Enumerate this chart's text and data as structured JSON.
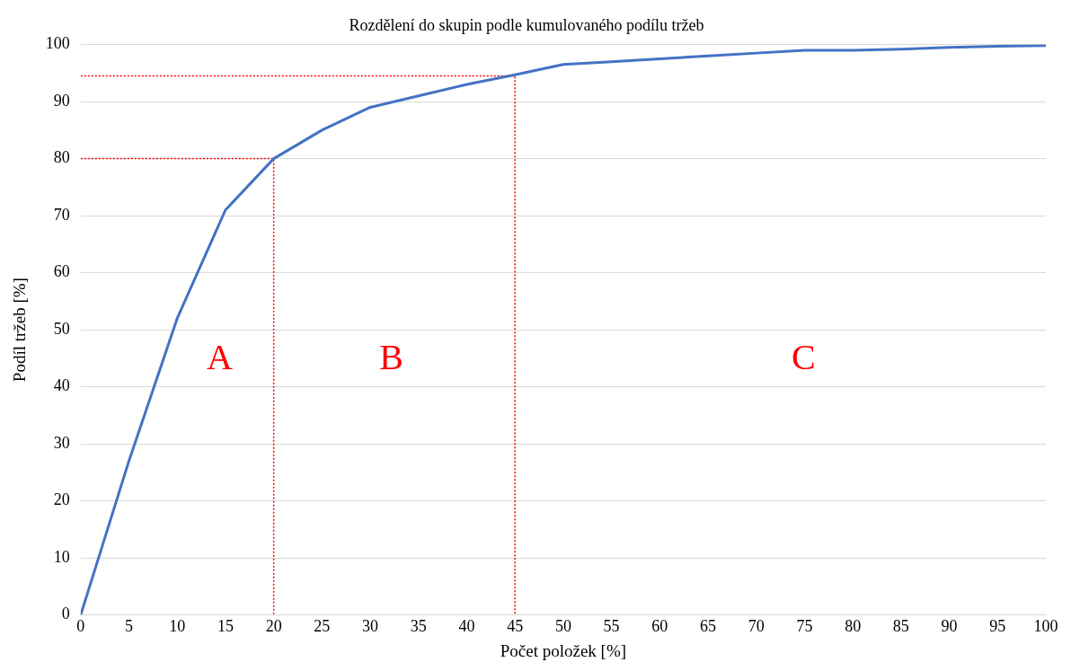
{
  "chart_data": {
    "type": "line",
    "title": "Rozdělení do skupin podle kumulovaného podílu tržeb",
    "xlabel": "Počet položek [%]",
    "ylabel": "Podíl tržeb [%]",
    "x": [
      0,
      5,
      10,
      15,
      20,
      25,
      30,
      35,
      40,
      45,
      50,
      55,
      60,
      65,
      70,
      75,
      80,
      85,
      90,
      95,
      100
    ],
    "series": [
      {
        "color": "#4472c4",
        "values": [
          0,
          27,
          52,
          71,
          80,
          85,
          89,
          91,
          93,
          94.7,
          96.5,
          97,
          97.5,
          98,
          98.5,
          99,
          99,
          99.2,
          99.5,
          99.7,
          99.8
        ]
      },
      {
        "color": "#ff0000",
        "line_style": "dotted",
        "x": [
          0,
          20,
          20
        ],
        "values": [
          80,
          80,
          0
        ]
      },
      {
        "color": "#ff0000",
        "line_style": "dotted",
        "x": [
          0,
          45,
          45
        ],
        "values": [
          94.5,
          94.5,
          0
        ]
      }
    ],
    "xlim": [
      0,
      100
    ],
    "xticks": [
      0,
      5,
      10,
      15,
      20,
      25,
      30,
      35,
      40,
      45,
      50,
      55,
      60,
      65,
      70,
      75,
      80,
      85,
      90,
      95,
      100
    ],
    "ylim": [
      0,
      100
    ],
    "yticks": [
      0,
      10,
      20,
      30,
      40,
      50,
      60,
      70,
      80,
      90,
      100
    ],
    "grid": "y",
    "legend": false,
    "marker": "none",
    "annotations": [
      "A",
      "B",
      "C"
    ]
  }
}
